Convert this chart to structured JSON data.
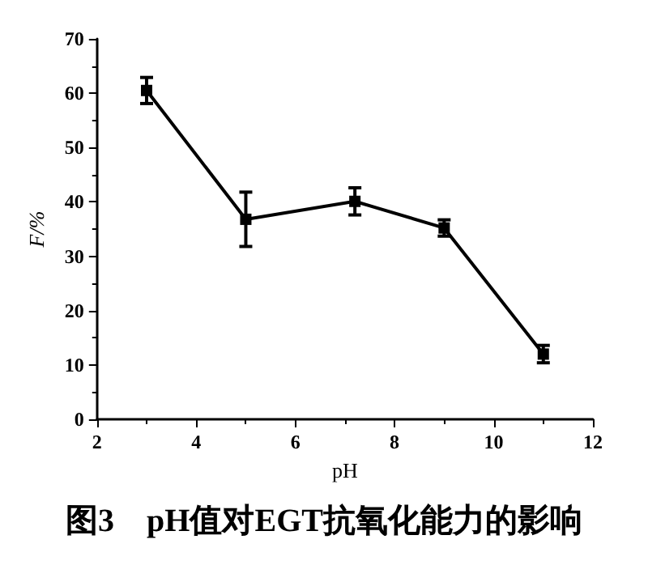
{
  "chart_data": {
    "type": "line",
    "title": "图3　pH值对EGT抗氧化能力的影响",
    "xlabel": "pH",
    "ylabel": "F/%",
    "x": [
      3,
      5,
      7.2,
      9,
      11
    ],
    "series": [
      {
        "color": "#000000",
        "values": [
          60.5,
          36.8,
          40.1,
          35.2,
          12.0
        ],
        "errors": [
          2.4,
          5,
          2.5,
          1.5,
          1.6
        ]
      }
    ],
    "xlim": [
      2,
      12
    ],
    "xticks": [
      2,
      4,
      6,
      8,
      10,
      12
    ],
    "ylim": [
      0,
      70
    ],
    "yticks": [
      0,
      10,
      20,
      30,
      40,
      50,
      60,
      70
    ],
    "grid": false,
    "marker": "square",
    "line_style": "solid"
  }
}
